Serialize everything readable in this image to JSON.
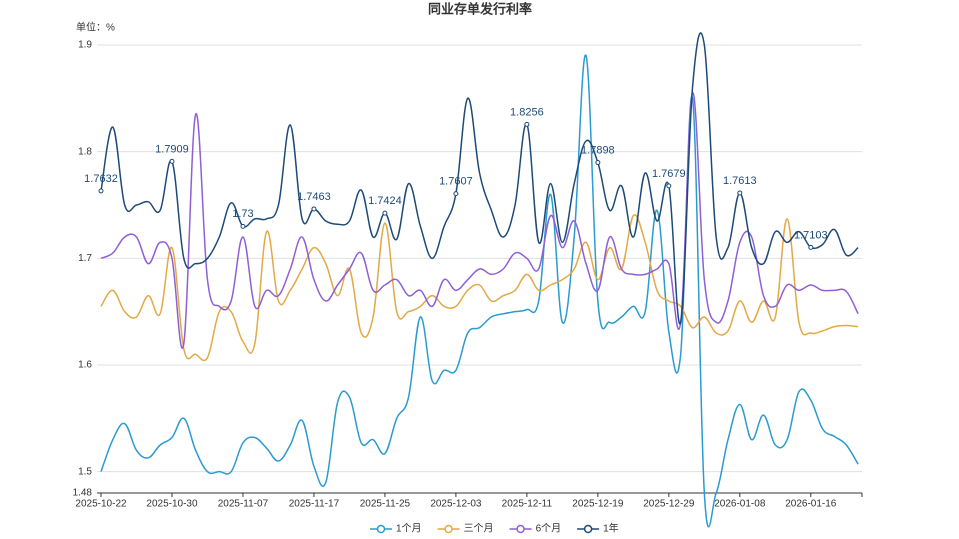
{
  "chart_data": {
    "type": "line",
    "title": "同业存单发行利率",
    "unit": "单位：%",
    "categories": [
      "2025-10-22",
      null,
      null,
      null,
      null,
      null,
      "2025-10-30",
      null,
      null,
      null,
      null,
      null,
      "2025-11-07",
      null,
      null,
      null,
      null,
      null,
      "2025-11-17",
      null,
      null,
      null,
      null,
      null,
      "2025-11-25",
      null,
      null,
      null,
      null,
      null,
      "2025-12-03",
      null,
      null,
      null,
      null,
      null,
      "2025-12-11",
      null,
      null,
      null,
      null,
      null,
      "2025-12-19",
      null,
      null,
      null,
      null,
      null,
      "2025-12-29",
      null,
      null,
      null,
      null,
      null,
      "2026-01-08",
      null,
      null,
      null,
      null,
      null,
      "2026-01-16",
      null,
      null,
      null,
      null
    ],
    "ylim": [
      1.48,
      1.9
    ],
    "yticks": [
      1.48,
      1.5,
      1.6,
      1.7,
      1.8,
      1.9
    ],
    "grid": true,
    "series": [
      {
        "name": "1个月",
        "color": "#2a9bcf",
        "values": [
          1.5,
          1.53,
          1.545,
          1.52,
          1.513,
          1.525,
          1.532,
          1.55,
          1.52,
          1.5,
          1.5,
          1.5,
          1.527,
          1.532,
          1.522,
          1.51,
          1.525,
          1.548,
          1.505,
          1.49,
          1.565,
          1.57,
          1.527,
          1.53,
          1.517,
          1.55,
          1.57,
          1.645,
          1.585,
          1.595,
          1.595,
          1.63,
          1.635,
          1.645,
          1.648,
          1.65,
          1.652,
          1.66,
          1.76,
          1.64,
          1.72,
          1.89,
          1.66,
          1.64,
          1.645,
          1.655,
          1.65,
          1.745,
          1.631,
          1.61,
          1.85,
          1.48,
          1.48,
          1.53,
          1.563,
          1.53,
          1.553,
          1.525,
          1.53,
          1.575,
          1.567,
          1.54,
          1.533,
          1.525,
          1.507
        ]
      },
      {
        "name": "三个月",
        "color": "#e2a944",
        "values": [
          1.655,
          1.67,
          1.65,
          1.645,
          1.665,
          1.648,
          1.71,
          1.615,
          1.61,
          1.607,
          1.65,
          1.65,
          1.622,
          1.62,
          1.725,
          1.66,
          1.67,
          1.69,
          1.71,
          1.695,
          1.665,
          1.69,
          1.63,
          1.645,
          1.733,
          1.65,
          1.65,
          1.655,
          1.665,
          1.655,
          1.655,
          1.67,
          1.675,
          1.66,
          1.665,
          1.67,
          1.685,
          1.67,
          1.675,
          1.68,
          1.69,
          1.715,
          1.68,
          1.71,
          1.69,
          1.74,
          1.715,
          1.67,
          1.66,
          1.655,
          1.635,
          1.645,
          1.63,
          1.632,
          1.66,
          1.64,
          1.66,
          1.645,
          1.737,
          1.64,
          1.63,
          1.632,
          1.636,
          1.637,
          1.636
        ]
      },
      {
        "name": "6个月",
        "color": "#8e5fd6",
        "values": [
          1.7,
          1.705,
          1.72,
          1.72,
          1.695,
          1.715,
          1.7,
          1.62,
          1.835,
          1.68,
          1.655,
          1.66,
          1.72,
          1.655,
          1.67,
          1.665,
          1.69,
          1.72,
          1.68,
          1.66,
          1.675,
          1.69,
          1.705,
          1.67,
          1.675,
          1.68,
          1.665,
          1.67,
          1.655,
          1.68,
          1.67,
          1.68,
          1.69,
          1.685,
          1.69,
          1.705,
          1.7,
          1.69,
          1.74,
          1.71,
          1.735,
          1.695,
          1.67,
          1.72,
          1.69,
          1.685,
          1.685,
          1.69,
          1.695,
          1.64,
          1.855,
          1.68,
          1.64,
          1.66,
          1.715,
          1.72,
          1.665,
          1.655,
          1.675,
          1.67,
          1.675,
          1.67,
          1.67,
          1.669,
          1.648
        ]
      },
      {
        "name": "1年",
        "color": "#1d4a78",
        "values": [
          1.7632,
          1.823,
          1.75,
          1.75,
          1.753,
          1.745,
          1.7909,
          1.7,
          1.695,
          1.7,
          1.72,
          1.752,
          1.73,
          1.737,
          1.737,
          1.75,
          1.825,
          1.737,
          1.7463,
          1.735,
          1.732,
          1.735,
          1.764,
          1.72,
          1.7424,
          1.718,
          1.77,
          1.73,
          1.7,
          1.73,
          1.7607,
          1.85,
          1.78,
          1.745,
          1.72,
          1.75,
          1.8256,
          1.715,
          1.77,
          1.715,
          1.77,
          1.81,
          1.7898,
          1.745,
          1.768,
          1.72,
          1.78,
          1.735,
          1.7679,
          1.64,
          1.86,
          1.9,
          1.72,
          1.71,
          1.7613,
          1.71,
          1.695,
          1.725,
          1.715,
          1.725,
          1.7103,
          1.713,
          1.727,
          1.703,
          1.71
        ],
        "value_labels": [
          "1.7632",
          null,
          null,
          null,
          null,
          null,
          "1.7909",
          null,
          null,
          null,
          null,
          null,
          "1.73",
          null,
          null,
          null,
          null,
          null,
          "1.7463",
          null,
          null,
          null,
          null,
          null,
          "1.7424",
          null,
          null,
          null,
          null,
          null,
          "1.7607",
          null,
          null,
          null,
          null,
          null,
          "1.8256",
          null,
          null,
          null,
          null,
          null,
          "1.7898",
          null,
          null,
          null,
          null,
          null,
          "1.7679",
          null,
          null,
          null,
          null,
          null,
          "1.7613",
          null,
          null,
          null,
          null,
          null,
          "1.7103",
          null,
          null,
          null,
          null
        ]
      }
    ]
  }
}
